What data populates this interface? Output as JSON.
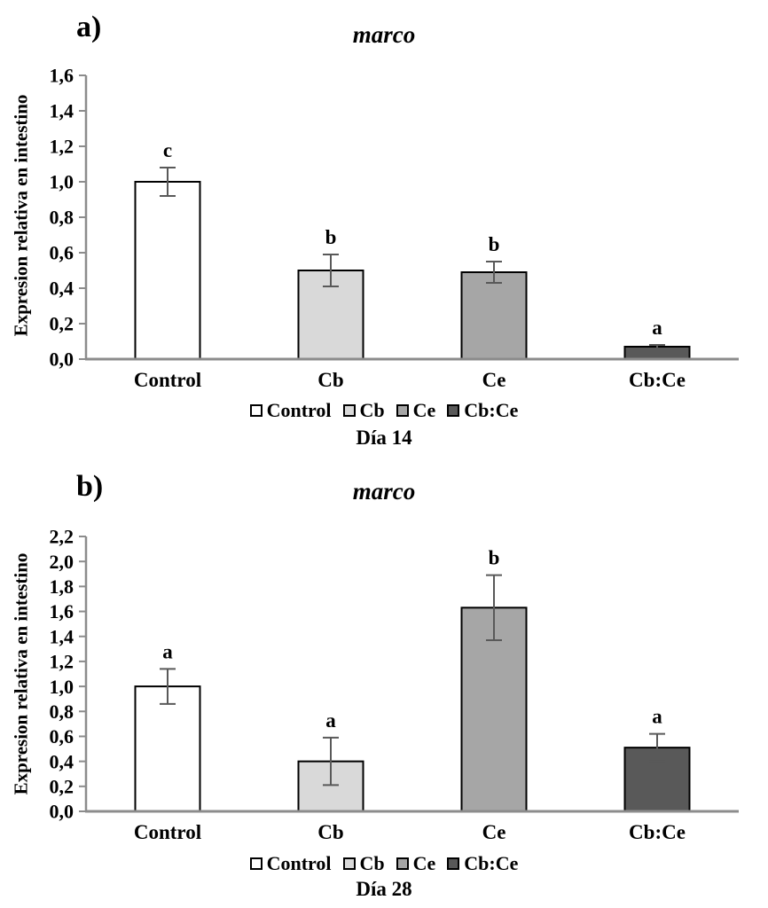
{
  "chart_data": [
    {
      "type": "bar",
      "panel_label": "a)",
      "title": "marco",
      "xlabel": "Día 14",
      "ylabel": "Expresion relativa en intestino",
      "categories": [
        "Control",
        "Cb",
        "Ce",
        "Cb:Ce"
      ],
      "values": [
        1.0,
        0.5,
        0.49,
        0.07
      ],
      "errors": [
        0.08,
        0.09,
        0.06,
        0.01
      ],
      "sig_letters": [
        "c",
        "b",
        "b",
        "a"
      ],
      "ylim": [
        0,
        1.6
      ],
      "ytick_step": 0.2,
      "ytick_labels": [
        "0,0",
        "0,2",
        "0,4",
        "0,6",
        "0,8",
        "1,0",
        "1,2",
        "1,4",
        "1,6"
      ],
      "grid": "off",
      "legend_position": "bottom",
      "bar_colors": [
        "#ffffff",
        "#d9d9d9",
        "#a6a6a6",
        "#595959"
      ]
    },
    {
      "type": "bar",
      "panel_label": "b)",
      "title": "marco",
      "xlabel": "Día 28",
      "ylabel": "Expresion relativa en intestino",
      "categories": [
        "Control",
        "Cb",
        "Ce",
        "Cb:Ce"
      ],
      "values": [
        1.0,
        0.4,
        1.63,
        0.51
      ],
      "errors": [
        0.14,
        0.19,
        0.26,
        0.11
      ],
      "sig_letters": [
        "a",
        "a",
        "b",
        "a"
      ],
      "ylim": [
        0,
        2.2
      ],
      "ytick_step": 0.2,
      "ytick_labels": [
        "0,0",
        "0,2",
        "0,4",
        "0,6",
        "0,8",
        "1,0",
        "1,2",
        "1,4",
        "1,6",
        "1,8",
        "2,0",
        "2,2"
      ],
      "grid": "off",
      "legend_position": "bottom",
      "bar_colors": [
        "#ffffff",
        "#d9d9d9",
        "#a6a6a6",
        "#595959"
      ]
    }
  ],
  "legend": {
    "items": [
      {
        "label": "Control",
        "swatch": "#ffffff"
      },
      {
        "label": "Cb",
        "swatch": "#d9d9d9"
      },
      {
        "label": "Ce",
        "swatch": "#a6a6a6"
      },
      {
        "label": "Cb:Ce",
        "swatch": "#595959"
      }
    ]
  },
  "style": {
    "bar_border": "#000000",
    "error_color": "#595959",
    "axis_color": "#8c8c8c",
    "text_color": "#000000",
    "background": "#ffffff"
  }
}
